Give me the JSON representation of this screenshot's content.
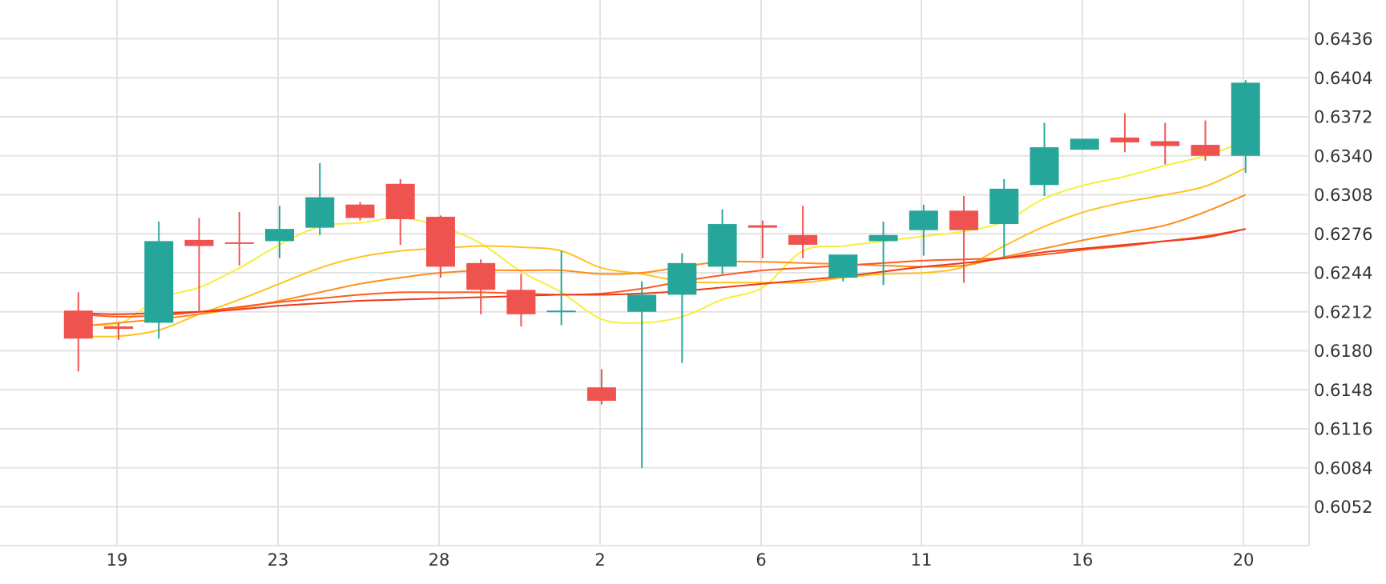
{
  "chart_data": {
    "type": "candlestick",
    "title": "",
    "xlabel": "",
    "ylabel": "",
    "x_tick_labels": [
      "19",
      "23",
      "28",
      "2",
      "6",
      "11",
      "16",
      "20"
    ],
    "y_tick_labels": [
      "0.6052",
      "0.6084",
      "0.6116",
      "0.6148",
      "0.6180",
      "0.6212",
      "0.6244",
      "0.6276",
      "0.6308",
      "0.6340",
      "0.6372",
      "0.6404",
      "0.6436"
    ],
    "ylim": [
      6020,
      6456
    ],
    "y_scale": 10000,
    "grid": true,
    "candles": [
      {
        "o": 6213,
        "h": 6228,
        "l": 6163,
        "c": 6190
      },
      {
        "o": 6200,
        "h": 6203,
        "l": 6189,
        "c": 6198
      },
      {
        "o": 6203,
        "h": 6286,
        "l": 6190,
        "c": 6270
      },
      {
        "o": 6271,
        "h": 6289,
        "l": 6212,
        "c": 6266
      },
      {
        "o": 6269,
        "h": 6294,
        "l": 6250,
        "c": 6268
      },
      {
        "o": 6270,
        "h": 6299,
        "l": 6256,
        "c": 6280
      },
      {
        "o": 6281,
        "h": 6334,
        "l": 6275,
        "c": 6306
      },
      {
        "o": 6300,
        "h": 6302,
        "l": 6287,
        "c": 6289
      },
      {
        "o": 6317,
        "h": 6321,
        "l": 6267,
        "c": 6288
      },
      {
        "o": 6290,
        "h": 6291,
        "l": 6240,
        "c": 6249
      },
      {
        "o": 6252,
        "h": 6255,
        "l": 6210,
        "c": 6230
      },
      {
        "o": 6230,
        "h": 6243,
        "l": 6200,
        "c": 6210
      },
      {
        "o": 6212,
        "h": 6262,
        "l": 6201,
        "c": 6213
      },
      {
        "o": 6150,
        "h": 6165,
        "l": 6136,
        "c": 6139
      },
      {
        "o": 6212,
        "h": 6237,
        "l": 6084,
        "c": 6226
      },
      {
        "o": 6226,
        "h": 6260,
        "l": 6170,
        "c": 6252
      },
      {
        "o": 6249,
        "h": 6296,
        "l": 6243,
        "c": 6284
      },
      {
        "o": 6283,
        "h": 6287,
        "l": 6256,
        "c": 6281
      },
      {
        "o": 6275,
        "h": 6299,
        "l": 6256,
        "c": 6267
      },
      {
        "o": 6240,
        "h": 6258,
        "l": 6237,
        "c": 6259
      },
      {
        "o": 6270,
        "h": 6286,
        "l": 6234,
        "c": 6275
      },
      {
        "o": 6279,
        "h": 6300,
        "l": 6258,
        "c": 6295
      },
      {
        "o": 6295,
        "h": 6307,
        "l": 6236,
        "c": 6279
      },
      {
        "o": 6284,
        "h": 6321,
        "l": 6257,
        "c": 6313
      },
      {
        "o": 6316,
        "h": 6367,
        "l": 6307,
        "c": 6347
      },
      {
        "o": 6345,
        "h": 6354,
        "l": 6345,
        "c": 6354
      },
      {
        "o": 6355,
        "h": 6375,
        "l": 6343,
        "c": 6351
      },
      {
        "o": 6352,
        "h": 6367,
        "l": 6333,
        "c": 6348
      },
      {
        "o": 6349,
        "h": 6369,
        "l": 6336,
        "c": 6340
      },
      {
        "o": 6340,
        "h": 6402,
        "l": 6326,
        "c": 6400
      }
    ],
    "moving_averages": [
      {
        "color": "#f5f03a",
        "values": [
          6203,
          6202,
          6223,
          6232,
          6248,
          6267,
          6282,
          6285,
          6289,
          6282,
          6268,
          6245,
          6228,
          6206,
          6203,
          6208,
          6222,
          6232,
          6262,
          6266,
          6270,
          6274,
          6278,
          6286,
          6305,
          6316,
          6323,
          6332,
          6340,
          6352
        ]
      },
      {
        "color": "#ffc21e",
        "values": [
          6192,
          6192,
          6197,
          6210,
          6222,
          6235,
          6248,
          6257,
          6262,
          6264,
          6266,
          6265,
          6262,
          6248,
          6243,
          6237,
          6236,
          6236,
          6236,
          6240,
          6243,
          6244,
          6249,
          6266,
          6282,
          6294,
          6302,
          6308,
          6315,
          6330
        ]
      },
      {
        "color": "#ff8c1a",
        "values": [
          6200,
          6203,
          6206,
          6210,
          6215,
          6221,
          6228,
          6235,
          6240,
          6244,
          6246,
          6246,
          6246,
          6243,
          6244,
          6249,
          6253,
          6253,
          6252,
          6251,
          6250,
          6249,
          6250,
          6257,
          6264,
          6271,
          6277,
          6283,
          6294,
          6308
        ]
      },
      {
        "color": "#ff5a1f",
        "values": [
          6210,
          6208,
          6209,
          6212,
          6216,
          6220,
          6223,
          6226,
          6228,
          6228,
          6228,
          6227,
          6226,
          6227,
          6231,
          6237,
          6242,
          6246,
          6248,
          6250,
          6252,
          6254,
          6255,
          6256,
          6259,
          6263,
          6266,
          6270,
          6274,
          6280
        ]
      },
      {
        "color": "#ea3a1b",
        "values": [
          6211,
          6210,
          6211,
          6212,
          6214,
          6217,
          6219,
          6221,
          6222,
          6223,
          6224,
          6225,
          6226,
          6226,
          6227,
          6229,
          6232,
          6235,
          6238,
          6241,
          6245,
          6249,
          6252,
          6256,
          6261,
          6264,
          6267,
          6270,
          6273,
          6280
        ]
      }
    ],
    "up_color": "#26a69a",
    "down_color": "#ef5350"
  }
}
